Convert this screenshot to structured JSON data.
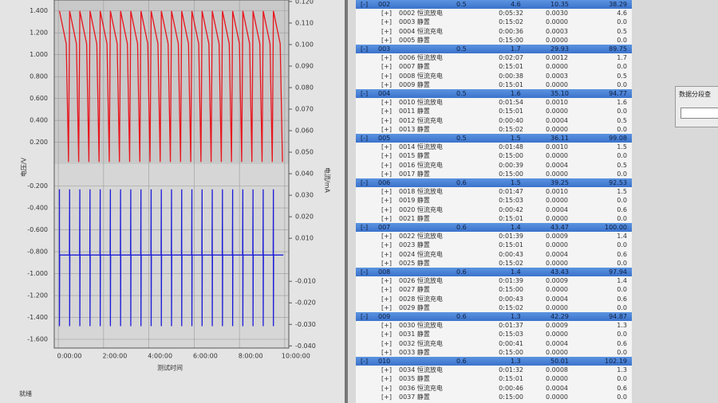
{
  "chart_data": {
    "type": "line",
    "y_label": "电压/V",
    "y2_label": "电流/mA",
    "x_label": "测试时间",
    "xlim": [
      -0.18,
      10.18
    ],
    "xticks": [
      {
        "value": 0,
        "label": "0:00:00"
      },
      {
        "value": 2,
        "label": "2:00:00"
      },
      {
        "value": 4,
        "label": "4:00:00"
      },
      {
        "value": 6,
        "label": "6:00:00"
      },
      {
        "value": 8,
        "label": "8:00:00"
      },
      {
        "value": 10,
        "label": "10:00:00"
      }
    ],
    "ylim": [
      -1.68,
      1.5
    ],
    "yticks": [
      {
        "value": 1.4,
        "label": "1.400"
      },
      {
        "value": 1.2,
        "label": "1.200"
      },
      {
        "value": 1.0,
        "label": "1.000"
      },
      {
        "value": 0.8,
        "label": "0.800"
      },
      {
        "value": 0.6,
        "label": "0.600"
      },
      {
        "value": 0.4,
        "label": "0.400"
      },
      {
        "value": 0.2,
        "label": "0.200"
      },
      {
        "value": -0.2,
        "label": "-0.200"
      },
      {
        "value": -0.4,
        "label": "-0.400"
      },
      {
        "value": -0.6,
        "label": "-0.600"
      },
      {
        "value": -0.8,
        "label": "-0.800"
      },
      {
        "value": -1.0,
        "label": "-1.000"
      },
      {
        "value": -1.2,
        "label": "-1.200"
      },
      {
        "value": -1.4,
        "label": "-1.400"
      },
      {
        "value": -1.6,
        "label": "-1.600"
      }
    ],
    "y2lim": [
      -0.041,
      0.1207
    ],
    "y2ticks": [
      {
        "value": 0.12,
        "label": "0.120"
      },
      {
        "value": 0.11,
        "label": "0.110"
      },
      {
        "value": 0.1,
        "label": "0.100"
      },
      {
        "value": 0.09,
        "label": "0.090"
      },
      {
        "value": 0.08,
        "label": "0.080"
      },
      {
        "value": 0.07,
        "label": "0.070"
      },
      {
        "value": 0.06,
        "label": "0.060"
      },
      {
        "value": 0.05,
        "label": "0.050"
      },
      {
        "value": 0.04,
        "label": "0.040"
      },
      {
        "value": 0.03,
        "label": "0.030"
      },
      {
        "value": 0.02,
        "label": "0.020"
      },
      {
        "value": 0.01,
        "label": "0.010"
      },
      {
        "value": -0.01,
        "label": "-0.010"
      },
      {
        "value": -0.02,
        "label": "-0.020"
      },
      {
        "value": -0.03,
        "label": "-0.030"
      },
      {
        "value": -0.04,
        "label": "-0.040"
      }
    ],
    "grid": true,
    "series": [
      {
        "color": "#e8141c",
        "x": [
          0.05,
          0.35,
          0.45,
          0.5,
          0.8,
          0.9,
          0.95,
          1.25,
          1.35,
          1.4,
          1.7,
          1.8,
          1.85,
          2.15,
          2.25,
          2.3,
          2.6,
          2.7,
          2.75,
          3.05,
          3.15,
          3.2,
          3.5,
          3.6,
          3.65,
          3.95,
          4.05,
          4.1,
          4.4,
          4.5,
          4.55,
          4.85,
          4.95,
          5,
          5.3,
          5.4,
          5.45,
          5.75,
          5.85,
          5.9,
          6.2,
          6.3,
          6.35,
          6.65,
          6.75,
          6.8,
          7.1,
          7.2,
          7.25,
          7.55,
          7.65,
          7.7,
          8,
          8.1,
          8.15,
          8.45,
          8.55,
          8.6,
          8.9,
          9,
          9.05,
          9.35,
          9.45,
          9.5,
          9.8,
          9.9
        ],
        "values": [
          1.4,
          1.1,
          0.02,
          1.4,
          1.1,
          0.02,
          1.4,
          1.1,
          0.02,
          1.4,
          1.1,
          0.02,
          1.4,
          1.1,
          0.02,
          1.4,
          1.1,
          0.02,
          1.4,
          1.1,
          0.02,
          1.4,
          1.1,
          0.02,
          1.4,
          1.1,
          0.02,
          1.4,
          1.1,
          0.02,
          1.4,
          1.1,
          0.02,
          1.4,
          1.1,
          0.02,
          1.4,
          1.1,
          0.02,
          1.4,
          1.1,
          0.02,
          1.4,
          1.1,
          0.02,
          1.4,
          1.1,
          0.02,
          1.4,
          1.1,
          0.02,
          1.4,
          1.1,
          0.02,
          1.4,
          1.1,
          0.02,
          1.4,
          1.1,
          0.02,
          1.4,
          1.1,
          0.02,
          1.4,
          1.1,
          0.02
        ]
      },
      {
        "color": "#1a1ad8",
        "x": [
          0.05,
          0.05,
          0.06,
          0.49,
          0.5,
          0.5,
          0.51,
          0.94,
          0.95,
          0.95,
          0.96,
          1.39,
          1.4,
          1.4,
          1.41,
          1.84,
          1.85,
          1.85,
          1.86,
          2.29,
          2.3,
          2.3,
          2.31,
          2.74,
          2.75,
          2.75,
          2.76,
          3.19,
          3.2,
          3.2,
          3.21,
          3.64,
          3.65,
          3.65,
          3.66,
          4.09,
          4.1,
          4.1,
          4.11,
          4.54,
          4.55,
          4.55,
          4.56,
          4.99,
          5,
          5,
          5.01,
          5.44,
          5.45,
          5.45,
          5.46,
          5.89,
          5.9,
          5.9,
          5.91,
          6.34,
          6.35,
          6.35,
          6.36,
          6.79,
          6.8,
          6.8,
          6.81,
          7.24,
          7.25,
          7.25,
          7.26,
          7.69,
          7.7,
          7.7,
          7.71,
          8.14,
          8.15,
          8.15,
          8.16,
          8.59,
          8.6,
          8.6,
          8.61,
          9.04,
          9.05,
          9.05,
          9.06,
          9.49,
          9.5,
          9.5,
          9.51,
          9.94
        ],
        "values": [
          -0.23,
          -1.48,
          -0.83,
          -0.83,
          -0.23,
          -1.48,
          -0.83,
          -0.83,
          -0.23,
          -1.48,
          -0.83,
          -0.83,
          -0.23,
          -1.48,
          -0.83,
          -0.83,
          -0.23,
          -1.48,
          -0.83,
          -0.83,
          -0.23,
          -1.48,
          -0.83,
          -0.83,
          -0.23,
          -1.48,
          -0.83,
          -0.83,
          -0.23,
          -1.48,
          -0.83,
          -0.83,
          -0.23,
          -1.48,
          -0.83,
          -0.83,
          -0.23,
          -1.48,
          -0.83,
          -0.83,
          -0.23,
          -1.48,
          -0.83,
          -0.83,
          -0.23,
          -1.48,
          -0.83,
          -0.83,
          -0.23,
          -1.48,
          -0.83,
          -0.83,
          -0.23,
          -1.48,
          -0.83,
          -0.83,
          -0.23,
          -1.48,
          -0.83,
          -0.83,
          -0.23,
          -1.48,
          -0.83,
          -0.83,
          -0.23,
          -1.48,
          -0.83,
          -0.83,
          -0.23,
          -1.48,
          -0.83,
          -0.83,
          -0.23,
          -1.48,
          -0.83,
          -0.83,
          -0.23,
          -1.48,
          -0.83,
          -0.83,
          -0.23,
          -1.48,
          -0.83,
          -0.83,
          -0.23,
          -1.48,
          -0.83,
          -0.83
        ]
      }
    ]
  },
  "status_bar": "就绪",
  "dialog": {
    "title": "数据分段查"
  },
  "table": {
    "groups": [
      {
        "cells": [
          "[-]",
          "002",
          "0.5",
          "4.6",
          "10.35",
          "38.29"
        ],
        "rows": [
          [
            "[+]",
            "0002 恒流放电",
            "0:05:32",
            "0.0030",
            "4.6"
          ],
          [
            "[+]",
            "0003 静置",
            "0:15:02",
            "0.0000",
            "0.0"
          ],
          [
            "[+]",
            "0004 恒流充电",
            "0:00:36",
            "0.0003",
            "0.5"
          ],
          [
            "[+]",
            "0005 静置",
            "0:15:00",
            "0.0000",
            "0.0"
          ]
        ]
      },
      {
        "cells": [
          "[-]",
          "003",
          "0.5",
          "1.7",
          "29.93",
          "89.75"
        ],
        "rows": [
          [
            "[+]",
            "0006 恒流放电",
            "0:02:07",
            "0.0012",
            "1.7"
          ],
          [
            "[+]",
            "0007 静置",
            "0:15:01",
            "0.0000",
            "0.0"
          ],
          [
            "[+]",
            "0008 恒流充电",
            "0:00:38",
            "0.0003",
            "0.5"
          ],
          [
            "[+]",
            "0009 静置",
            "0:15:01",
            "0.0000",
            "0.0"
          ]
        ]
      },
      {
        "cells": [
          "[-]",
          "004",
          "0.5",
          "1.6",
          "35.10",
          "94.77"
        ],
        "rows": [
          [
            "[+]",
            "0010 恒流放电",
            "0:01:54",
            "0.0010",
            "1.6"
          ],
          [
            "[+]",
            "0011 静置",
            "0:15:01",
            "0.0000",
            "0.0"
          ],
          [
            "[+]",
            "0012 恒流充电",
            "0:00:40",
            "0.0004",
            "0.5"
          ],
          [
            "[+]",
            "0013 静置",
            "0:15:02",
            "0.0000",
            "0.0"
          ]
        ]
      },
      {
        "cells": [
          "[-]",
          "005",
          "0.5",
          "1.5",
          "36.11",
          "99.08"
        ],
        "rows": [
          [
            "[+]",
            "0014 恒流放电",
            "0:01:48",
            "0.0010",
            "1.5"
          ],
          [
            "[+]",
            "0015 静置",
            "0:15:00",
            "0.0000",
            "0.0"
          ],
          [
            "[+]",
            "0016 恒流充电",
            "0:00:39",
            "0.0004",
            "0.5"
          ],
          [
            "[+]",
            "0017 静置",
            "0:15:00",
            "0.0000",
            "0.0"
          ]
        ]
      },
      {
        "cells": [
          "[-]",
          "006",
          "0.6",
          "1.5",
          "39.25",
          "92.53"
        ],
        "rows": [
          [
            "[+]",
            "0018 恒流放电",
            "0:01:47",
            "0.0010",
            "1.5"
          ],
          [
            "[+]",
            "0019 静置",
            "0:15:03",
            "0.0000",
            "0.0"
          ],
          [
            "[+]",
            "0020 恒流充电",
            "0:00:42",
            "0.0004",
            "0.6"
          ],
          [
            "[+]",
            "0021 静置",
            "0:15:01",
            "0.0000",
            "0.0"
          ]
        ]
      },
      {
        "cells": [
          "[-]",
          "007",
          "0.6",
          "1.4",
          "43.47",
          "100.00"
        ],
        "rows": [
          [
            "[+]",
            "0022 恒流放电",
            "0:01:39",
            "0.0009",
            "1.4"
          ],
          [
            "[+]",
            "0023 静置",
            "0:15:01",
            "0.0000",
            "0.0"
          ],
          [
            "[+]",
            "0024 恒流充电",
            "0:00:43",
            "0.0004",
            "0.6"
          ],
          [
            "[+]",
            "0025 静置",
            "0:15:02",
            "0.0000",
            "0.0"
          ]
        ]
      },
      {
        "cells": [
          "[-]",
          "008",
          "0.6",
          "1.4",
          "43.43",
          "97.94"
        ],
        "rows": [
          [
            "[+]",
            "0026 恒流放电",
            "0:01:39",
            "0.0009",
            "1.4"
          ],
          [
            "[+]",
            "0027 静置",
            "0:15:00",
            "0.0000",
            "0.0"
          ],
          [
            "[+]",
            "0028 恒流充电",
            "0:00:43",
            "0.0004",
            "0.6"
          ],
          [
            "[+]",
            "0029 静置",
            "0:15:02",
            "0.0000",
            "0.0"
          ]
        ]
      },
      {
        "cells": [
          "[-]",
          "009",
          "0.6",
          "1.3",
          "42.29",
          "94.87"
        ],
        "rows": [
          [
            "[+]",
            "0030 恒流放电",
            "0:01:37",
            "0.0009",
            "1.3"
          ],
          [
            "[+]",
            "0031 静置",
            "0:15:03",
            "0.0000",
            "0.0"
          ],
          [
            "[+]",
            "0032 恒流充电",
            "0:00:41",
            "0.0004",
            "0.6"
          ],
          [
            "[+]",
            "0033 静置",
            "0:15:00",
            "0.0000",
            "0.0"
          ]
        ]
      },
      {
        "cells": [
          "[-]",
          "010",
          "0.6",
          "1.3",
          "50.01",
          "102.19"
        ],
        "rows": [
          [
            "[+]",
            "0034 恒流放电",
            "0:01:32",
            "0.0008",
            "1.3"
          ],
          [
            "[+]",
            "0035 静置",
            "0:15:01",
            "0.0000",
            "0.0"
          ],
          [
            "[+]",
            "0036 恒流充电",
            "0:00:46",
            "0.0004",
            "0.6"
          ],
          [
            "[+]",
            "0037 静置",
            "0:15:00",
            "0.0000",
            "0.0"
          ]
        ]
      }
    ]
  }
}
